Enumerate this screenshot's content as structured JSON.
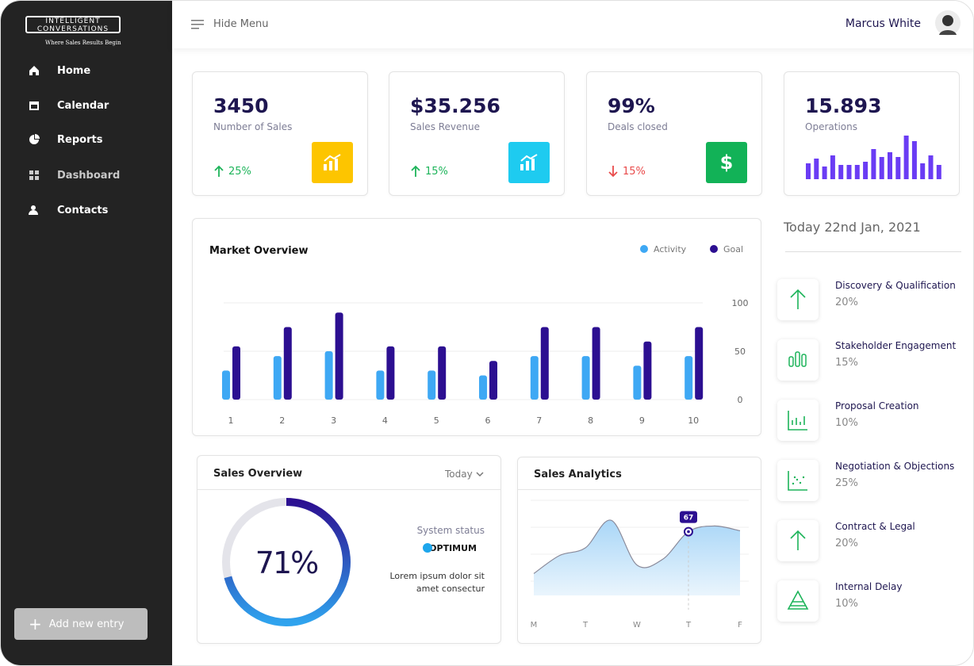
{
  "sidebar": {
    "logo": {
      "line1": "INTELLIGENT",
      "line2": "CONVERSATIONS",
      "tagline": "Where Sales Results Begin"
    },
    "menu": [
      "Home",
      "Calendar",
      "Reports",
      "Dashboard",
      "Contacts"
    ],
    "add_button": "Add new entry"
  },
  "header": {
    "hide_menu": "Hide Menu",
    "user": "Marcus White"
  },
  "stats": [
    {
      "value": "3450",
      "label": "Number of Sales",
      "change": "25%",
      "direction": "up",
      "icon_color": "#fdc500"
    },
    {
      "value": "$35.256",
      "label": "Sales Revenue",
      "change": "15%",
      "direction": "up",
      "icon_color": "#1ecbf0"
    },
    {
      "value": "99%",
      "label": "Deals closed",
      "change": "15%",
      "direction": "down",
      "icon_color": "#12b257"
    }
  ],
  "operations": {
    "value": "15.893",
    "label": "Operations",
    "chart_data": {
      "type": "bar",
      "values": [
        20,
        26,
        16,
        30,
        18,
        18,
        18,
        22,
        38,
        28,
        34,
        28,
        55,
        48,
        20,
        30,
        18
      ],
      "color": "#6a3cf4",
      "ylim": [
        0,
        60
      ]
    }
  },
  "market_overview": {
    "chart_data": {
      "type": "bar",
      "title": "Market Overview",
      "categories": [
        "1",
        "2",
        "3",
        "4",
        "5",
        "6",
        "7",
        "8",
        "9",
        "10"
      ],
      "series": [
        {
          "name": "Activity",
          "color": "#3ea8f4",
          "values": [
            30,
            45,
            50,
            30,
            30,
            25,
            45,
            45,
            35,
            45
          ]
        },
        {
          "name": "Goal",
          "color": "#2c0f91",
          "values": [
            55,
            75,
            90,
            55,
            55,
            40,
            75,
            75,
            60,
            75
          ]
        }
      ],
      "ylim": [
        0,
        100
      ],
      "yticks": [
        0,
        50,
        100
      ],
      "grid": true
    }
  },
  "sales_overview": {
    "title": "Sales Overview",
    "filter": "Today",
    "chart_data": {
      "type": "donut",
      "value": 71,
      "value_label": "71%",
      "range": [
        0,
        100
      ],
      "color": "#2c0f91"
    },
    "status_label": "System status",
    "status": "OPTIMUM",
    "description": [
      "Lorem ipsum dolor sit",
      "amet consectur"
    ]
  },
  "sales_analytics": {
    "chart_data": {
      "type": "area",
      "title": "Sales Analytics",
      "categories": [
        "M",
        null,
        "T",
        null,
        "W",
        null,
        "T",
        null,
        "F"
      ],
      "values": [
        23,
        42,
        50,
        79,
        32,
        38,
        67,
        73,
        68
      ],
      "value_labels": [
        null,
        null,
        null,
        null,
        null,
        null,
        "67",
        null,
        null
      ],
      "ylim": [
        0,
        100
      ],
      "color": "#a9d6f7"
    }
  },
  "agenda": {
    "date": "Today 22nd Jan, 2021",
    "stages": [
      {
        "name": "Discovery & Qualification",
        "percent": "20%"
      },
      {
        "name": "Stakeholder Engagement",
        "percent": "15%"
      },
      {
        "name": "Proposal Creation",
        "percent": "10%"
      },
      {
        "name": "Negotiation & Objections",
        "percent": "25%"
      },
      {
        "name": "Contract & Legal",
        "percent": "20%"
      },
      {
        "name": "Internal Delay",
        "percent": "10%"
      }
    ]
  }
}
